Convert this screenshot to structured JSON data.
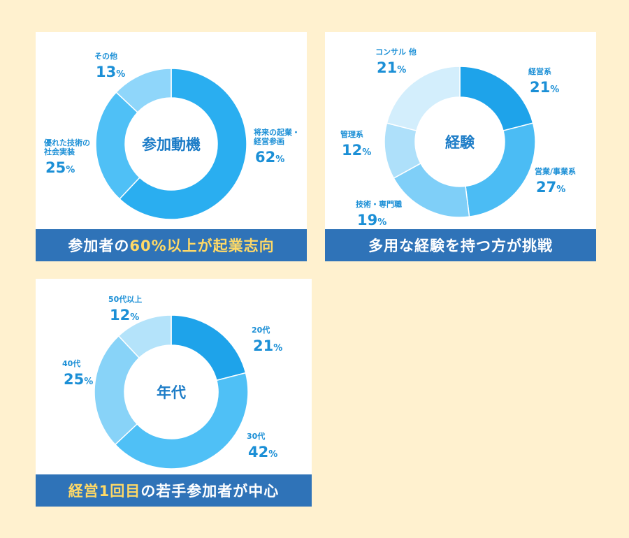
{
  "chart_data": [
    {
      "type": "pie",
      "center_label": "参加動機",
      "slices": [
        {
          "label": "将来の起業・経営参画",
          "label_lines": [
            "将来の起業・",
            "経営参画"
          ],
          "value": 62,
          "color": "#2aaef0"
        },
        {
          "label": "優れた技術の社会実装",
          "label_lines": [
            "優れた技術の",
            "社会実装"
          ],
          "value": 25,
          "color": "#4fc0f6"
        },
        {
          "label": "その他",
          "label_lines": [
            "その他"
          ],
          "value": 13,
          "color": "#8fd6fa"
        }
      ],
      "caption_parts": [
        {
          "text": "参加者の",
          "highlight": false
        },
        {
          "text": "60%以上が起業志向",
          "highlight": true
        }
      ]
    },
    {
      "type": "pie",
      "center_label": "経験",
      "slices": [
        {
          "label": "経営系",
          "label_lines": [
            "経営系"
          ],
          "value": 21,
          "color": "#1ea3ea"
        },
        {
          "label": "営業/事業系",
          "label_lines": [
            "営業/事業系"
          ],
          "value": 27,
          "color": "#4bbcf4"
        },
        {
          "label": "技術・専門職",
          "label_lines": [
            "技術・専門職"
          ],
          "value": 19,
          "color": "#7fcff8"
        },
        {
          "label": "管理系",
          "label_lines": [
            "管理系"
          ],
          "value": 12,
          "color": "#aee0fa"
        },
        {
          "label": "コンサル 他",
          "label_lines": [
            "コンサル 他"
          ],
          "value": 21,
          "color": "#d3eefc"
        }
      ],
      "caption_parts": [
        {
          "text": "多用な経験を持つ方が挑戦",
          "highlight": false
        }
      ]
    },
    {
      "type": "pie",
      "center_label": "年代",
      "slices": [
        {
          "label": "20代",
          "label_lines": [
            "20代"
          ],
          "value": 21,
          "color": "#1ea3ea"
        },
        {
          "label": "30代",
          "label_lines": [
            "30代"
          ],
          "value": 42,
          "color": "#4fc0f6"
        },
        {
          "label": "40代",
          "label_lines": [
            "40代"
          ],
          "value": 25,
          "color": "#88d3f8"
        },
        {
          "label": "50代以上",
          "label_lines": [
            "50代以上"
          ],
          "value": 12,
          "color": "#b4e3fa"
        }
      ],
      "caption_parts": [
        {
          "text": "経営1回目",
          "highlight": true
        },
        {
          "text": "の若手参加者が中心",
          "highlight": false
        }
      ]
    }
  ]
}
